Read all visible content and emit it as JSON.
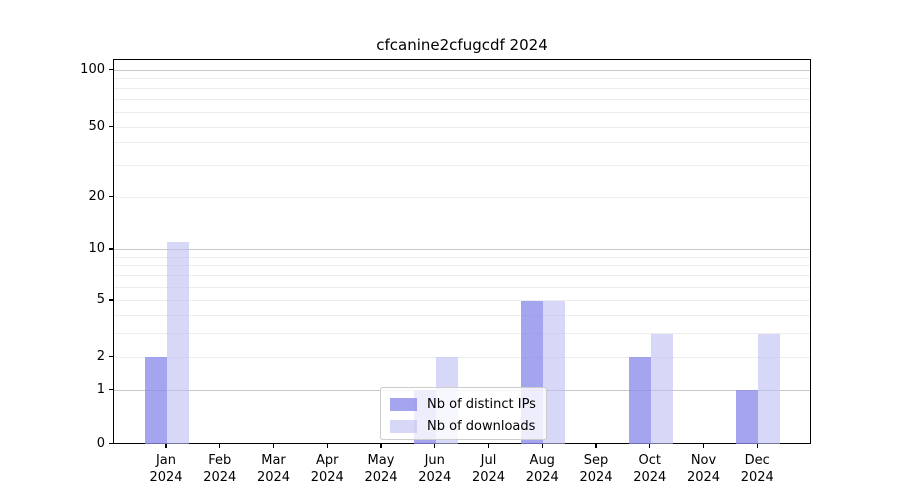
{
  "title": "cfcanine2cfugcdf 2024",
  "legend": {
    "items": [
      {
        "label": "Nb of distinct IPs",
        "color": "#8c8cea",
        "alpha": 0.78
      },
      {
        "label": "Nb of downloads",
        "color": "#bebef2",
        "alpha": 0.62
      }
    ]
  },
  "axes": {
    "y_tick_labels": [
      "0",
      "1",
      "2",
      "5",
      "10",
      "20",
      "50",
      "100"
    ],
    "y_tick_values": [
      0,
      1,
      2,
      5,
      10,
      20,
      50,
      100
    ],
    "y_minor_grid": [
      2,
      3,
      4,
      5,
      6,
      7,
      8,
      9,
      20,
      30,
      40,
      50,
      60,
      70,
      80,
      90
    ],
    "y_major_grid": [
      1,
      10,
      100
    ],
    "months": [
      "Jan",
      "Feb",
      "Mar",
      "Apr",
      "May",
      "Jun",
      "Jul",
      "Aug",
      "Sep",
      "Oct",
      "Nov",
      "Dec"
    ],
    "year": "2024"
  },
  "chart_data": {
    "type": "bar",
    "categories": [
      "Jan 2024",
      "Feb 2024",
      "Mar 2024",
      "Apr 2024",
      "May 2024",
      "Jun 2024",
      "Jul 2024",
      "Aug 2024",
      "Sep 2024",
      "Oct 2024",
      "Nov 2024",
      "Dec 2024"
    ],
    "series": [
      {
        "name": "Nb of distinct IPs",
        "values": [
          2,
          0,
          0,
          0,
          0,
          1,
          0,
          5,
          0,
          2,
          0,
          1
        ]
      },
      {
        "name": "Nb of downloads",
        "values": [
          11,
          0,
          0,
          0,
          0,
          2,
          0,
          5,
          0,
          3,
          0,
          3
        ]
      }
    ],
    "title": "cfcanine2cfugcdf 2024",
    "xlabel": "",
    "ylabel": "",
    "yscale": "symlog",
    "ylim": [
      0,
      115
    ],
    "grid": "both",
    "legend_position": "lower center"
  }
}
